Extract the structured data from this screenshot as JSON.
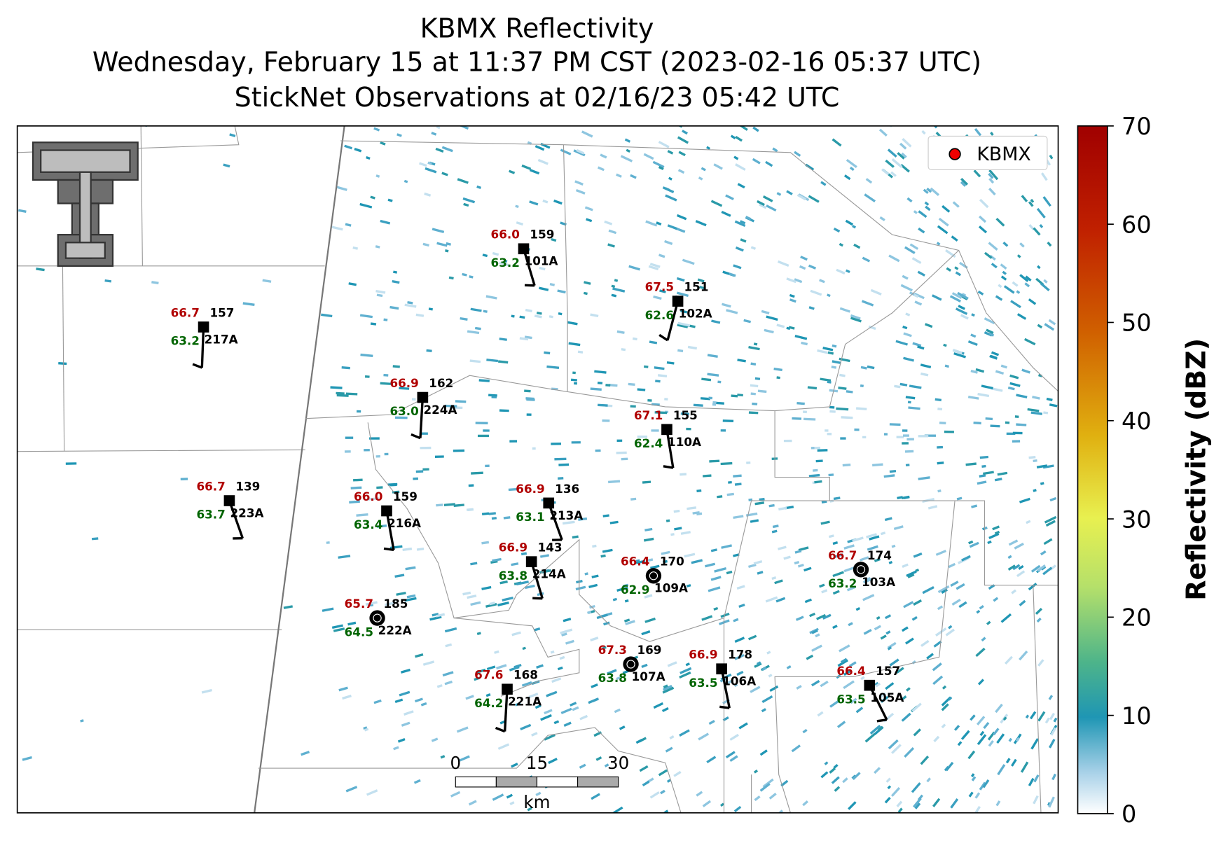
{
  "title": [
    "KBMX Reflectivity",
    "Wednesday, February 15 at 11:37 PM CST (2023-02-16 05:37 UTC)",
    "StickNet Observations at 02/16/23 05:42 UTC"
  ],
  "legend": "KBMX",
  "colorbar": {
    "label": "Reflectivity (dBZ)",
    "lim": [
      0,
      70
    ],
    "ticks": [
      0,
      10,
      20,
      30,
      40,
      50,
      60,
      70
    ]
  },
  "scale_bar": {
    "ticks": [
      0,
      15,
      30
    ],
    "unit": "km"
  },
  "stations": [
    {
      "id": "101A",
      "temperature": "66.0",
      "dewpoint": "63.2",
      "value": "159"
    },
    {
      "id": "102A",
      "temperature": "67.5",
      "dewpoint": "62.6",
      "value": "151"
    },
    {
      "id": "217A",
      "temperature": "66.7",
      "dewpoint": "63.2",
      "value": "157"
    },
    {
      "id": "224A",
      "temperature": "66.9",
      "dewpoint": "63.0",
      "value": "162"
    },
    {
      "id": "110A",
      "temperature": "67.1",
      "dewpoint": "62.4",
      "value": "155"
    },
    {
      "id": "223A",
      "temperature": "66.7",
      "dewpoint": "63.7",
      "value": "139"
    },
    {
      "id": "216A",
      "temperature": "66.0",
      "dewpoint": "63.4",
      "value": "159"
    },
    {
      "id": "213A",
      "temperature": "66.9",
      "dewpoint": "63.1",
      "value": "136"
    },
    {
      "id": "214A",
      "temperature": "66.9",
      "dewpoint": "63.8",
      "value": "143"
    },
    {
      "id": "109A",
      "temperature": "66.4",
      "dewpoint": "62.9",
      "value": "170"
    },
    {
      "id": "222A",
      "temperature": "65.7",
      "dewpoint": "64.5",
      "value": "185"
    },
    {
      "id": "103A",
      "temperature": "66.7",
      "dewpoint": "63.2",
      "value": "174"
    },
    {
      "id": "107A",
      "temperature": "67.3",
      "dewpoint": "63.8",
      "value": "169"
    },
    {
      "id": "106A",
      "temperature": "66.9",
      "dewpoint": "63.5",
      "value": "178"
    },
    {
      "id": "221A",
      "temperature": "67.6",
      "dewpoint": "64.2",
      "value": "168"
    },
    {
      "id": "105A",
      "temperature": "66.4",
      "dewpoint": "63.5",
      "value": "157"
    }
  ]
}
